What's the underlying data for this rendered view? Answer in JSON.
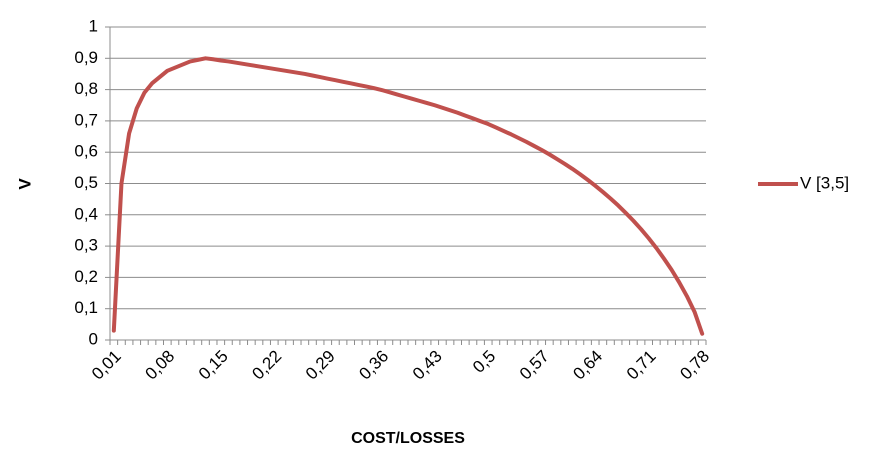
{
  "chart_data": {
    "type": "line",
    "x_label": "COST/LOSSES",
    "y_label": "V",
    "categories": [
      "0,01",
      null,
      null,
      null,
      null,
      null,
      null,
      "0,08",
      null,
      null,
      null,
      null,
      null,
      null,
      "0,15",
      null,
      null,
      null,
      null,
      null,
      null,
      "0,22",
      null,
      null,
      null,
      null,
      null,
      null,
      "0,29",
      null,
      null,
      null,
      null,
      null,
      null,
      "0,36",
      null,
      null,
      null,
      null,
      null,
      null,
      "0,43",
      null,
      null,
      null,
      null,
      null,
      null,
      "0,5",
      null,
      null,
      null,
      null,
      null,
      null,
      "0,57",
      null,
      null,
      null,
      null,
      null,
      null,
      "0,64",
      null,
      null,
      null,
      null,
      null,
      null,
      "0,71",
      null,
      null,
      null,
      null,
      null,
      null,
      "0,78"
    ],
    "series": [
      {
        "name": "V [3,5]",
        "color": "#c0504d",
        "values": [
          0.03,
          0.5,
          0.66,
          0.74,
          0.79,
          0.82,
          0.84,
          0.86,
          0.87,
          0.88,
          0.89,
          0.895,
          0.9,
          0.897,
          0.893,
          0.89,
          0.886,
          0.882,
          0.878,
          0.874,
          0.87,
          0.866,
          0.862,
          0.858,
          0.854,
          0.85,
          0.845,
          0.84,
          0.835,
          0.83,
          0.825,
          0.82,
          0.815,
          0.81,
          0.805,
          0.799,
          0.792,
          0.785,
          0.778,
          0.771,
          0.764,
          0.757,
          0.75,
          0.742,
          0.734,
          0.726,
          0.717,
          0.708,
          0.699,
          0.69,
          0.679,
          0.668,
          0.657,
          0.645,
          0.633,
          0.62,
          0.607,
          0.593,
          0.578,
          0.563,
          0.547,
          0.53,
          0.512,
          0.493,
          0.473,
          0.452,
          0.43,
          0.406,
          0.381,
          0.354,
          0.325,
          0.294,
          0.26,
          0.224,
          0.184,
          0.14,
          0.09,
          0.02
        ]
      }
    ],
    "ylim": [
      0,
      1
    ],
    "yticks": [
      0,
      {
        "value": 0.1,
        "label": "0,1"
      },
      {
        "value": 0.2,
        "label": "0,2"
      },
      {
        "value": 0.3,
        "label": "0,3"
      },
      {
        "value": 0.4,
        "label": "0,4"
      },
      {
        "value": 0.5,
        "label": "0,5"
      },
      {
        "value": 0.6,
        "label": "0,6"
      },
      {
        "value": 0.7,
        "label": "0,7"
      },
      {
        "value": 0.8,
        "label": "0,8"
      },
      {
        "value": 0.9,
        "label": "0,9"
      },
      1
    ],
    "grid": true,
    "legend": "right"
  }
}
